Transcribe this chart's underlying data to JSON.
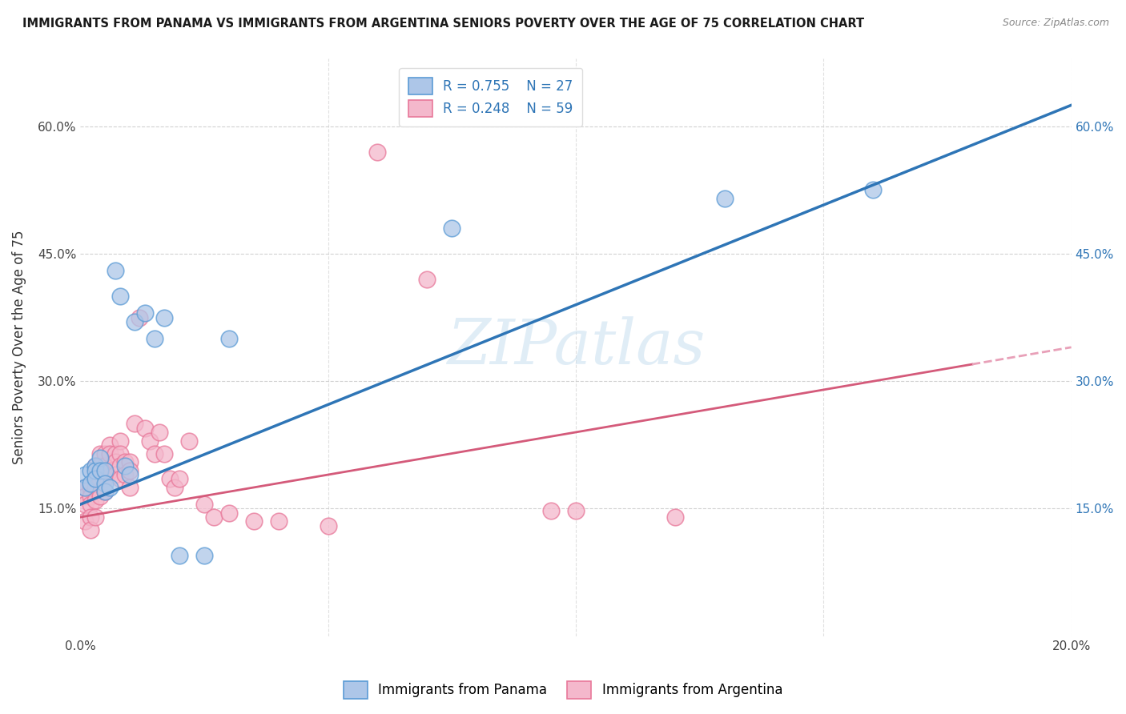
{
  "title": "IMMIGRANTS FROM PANAMA VS IMMIGRANTS FROM ARGENTINA SENIORS POVERTY OVER THE AGE OF 75 CORRELATION CHART",
  "source": "Source: ZipAtlas.com",
  "ylabel": "Seniors Poverty Over the Age of 75",
  "xlim": [
    0,
    0.2
  ],
  "ylim": [
    0,
    0.68
  ],
  "xticks": [
    0.0,
    0.05,
    0.1,
    0.15,
    0.2
  ],
  "yticks": [
    0.0,
    0.15,
    0.3,
    0.45,
    0.6
  ],
  "panama_color": "#adc6e8",
  "panama_edge_color": "#5b9bd5",
  "argentina_color": "#f4b8cc",
  "argentina_edge_color": "#e8789a",
  "panama_line_color": "#2e75b6",
  "argentina_line_color": "#d45a7a",
  "argentina_line_dashed_color": "#e8a0b8",
  "R_panama": 0.755,
  "N_panama": 27,
  "R_argentina": 0.248,
  "N_argentina": 59,
  "legend_label_panama": "Immigrants from Panama",
  "legend_label_argentina": "Immigrants from Argentina",
  "watermark": "ZIPatlas",
  "panama_x": [
    0.001,
    0.001,
    0.002,
    0.002,
    0.003,
    0.003,
    0.003,
    0.004,
    0.004,
    0.005,
    0.005,
    0.005,
    0.006,
    0.007,
    0.008,
    0.009,
    0.01,
    0.011,
    0.013,
    0.015,
    0.017,
    0.02,
    0.025,
    0.03,
    0.075,
    0.13,
    0.16
  ],
  "panama_y": [
    0.19,
    0.175,
    0.195,
    0.18,
    0.2,
    0.195,
    0.185,
    0.21,
    0.195,
    0.195,
    0.18,
    0.17,
    0.175,
    0.43,
    0.4,
    0.2,
    0.19,
    0.37,
    0.38,
    0.35,
    0.375,
    0.095,
    0.095,
    0.35,
    0.48,
    0.515,
    0.525
  ],
  "argentina_x": [
    0.001,
    0.001,
    0.001,
    0.001,
    0.002,
    0.002,
    0.002,
    0.002,
    0.002,
    0.003,
    0.003,
    0.003,
    0.003,
    0.003,
    0.004,
    0.004,
    0.004,
    0.004,
    0.005,
    0.005,
    0.005,
    0.005,
    0.006,
    0.006,
    0.006,
    0.007,
    0.007,
    0.007,
    0.008,
    0.008,
    0.008,
    0.008,
    0.009,
    0.009,
    0.01,
    0.01,
    0.01,
    0.011,
    0.012,
    0.013,
    0.014,
    0.015,
    0.016,
    0.017,
    0.018,
    0.019,
    0.02,
    0.022,
    0.025,
    0.027,
    0.03,
    0.035,
    0.04,
    0.05,
    0.06,
    0.07,
    0.095,
    0.1,
    0.12
  ],
  "argentina_y": [
    0.175,
    0.165,
    0.155,
    0.135,
    0.175,
    0.165,
    0.155,
    0.14,
    0.125,
    0.2,
    0.185,
    0.175,
    0.16,
    0.14,
    0.215,
    0.2,
    0.185,
    0.165,
    0.215,
    0.2,
    0.185,
    0.17,
    0.225,
    0.215,
    0.195,
    0.215,
    0.205,
    0.19,
    0.23,
    0.215,
    0.2,
    0.185,
    0.205,
    0.19,
    0.205,
    0.195,
    0.175,
    0.25,
    0.375,
    0.245,
    0.23,
    0.215,
    0.24,
    0.215,
    0.185,
    0.175,
    0.185,
    0.23,
    0.155,
    0.14,
    0.145,
    0.135,
    0.135,
    0.13,
    0.57,
    0.42,
    0.148,
    0.148,
    0.14
  ]
}
